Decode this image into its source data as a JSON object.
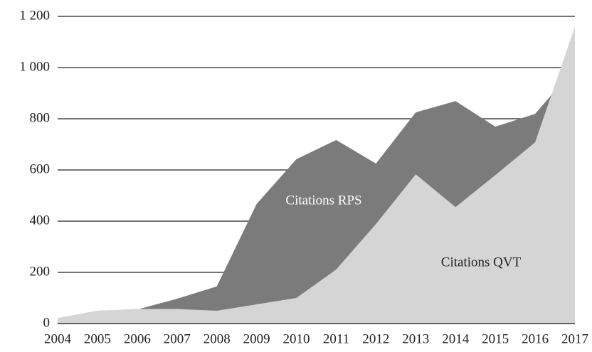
{
  "chart_data": {
    "type": "area",
    "categories": [
      "2004",
      "2005",
      "2006",
      "2007",
      "2008",
      "2009",
      "2010",
      "2011",
      "2012",
      "2013",
      "2014",
      "2015",
      "2016",
      "2017"
    ],
    "series": [
      {
        "name": "Citations RPS",
        "color": "#7b7b7c",
        "values": [
          20,
          50,
          55,
          97,
          145,
          467,
          642,
          717,
          625,
          825,
          869,
          769,
          819,
          1000
        ]
      },
      {
        "name": "Citations QVT",
        "color": "#d5d5d6",
        "values": [
          22,
          50,
          57,
          57,
          50,
          75,
          100,
          211,
          389,
          583,
          455,
          580,
          708,
          1160
        ]
      }
    ],
    "ylim": [
      0,
      1200
    ],
    "yticks": [
      0,
      200,
      400,
      600,
      800,
      {
        "value": 1000,
        "label": "1 000"
      },
      {
        "value": 1200,
        "label": "1 200"
      }
    ],
    "grid": true
  }
}
